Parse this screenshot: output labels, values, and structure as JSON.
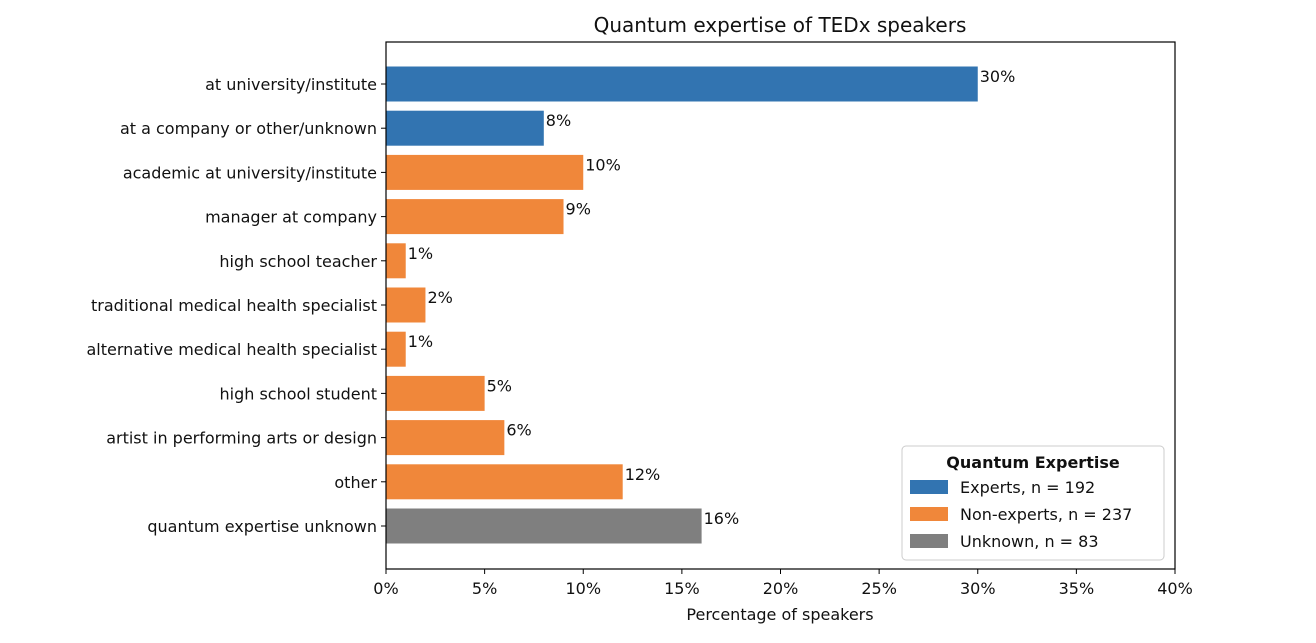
{
  "chart_data": {
    "type": "bar",
    "orientation": "horizontal",
    "title": "Quantum expertise of TEDx speakers",
    "xlabel": "Percentage of speakers",
    "ylabel": "",
    "xlim": [
      0,
      40
    ],
    "x_ticks": [
      0,
      5,
      10,
      15,
      20,
      25,
      30,
      35,
      40
    ],
    "x_tick_labels": [
      "0%",
      "5%",
      "10%",
      "15%",
      "20%",
      "25%",
      "30%",
      "35%",
      "40%"
    ],
    "grid": false,
    "legend_position": "bottom-right",
    "legend_title": "Quantum Expertise",
    "legend": [
      {
        "name": "Experts, n = 192",
        "group": "experts",
        "color": "#3274b1"
      },
      {
        "name": "Non-experts, n = 237",
        "group": "nonexperts",
        "color": "#f0873a"
      },
      {
        "name": "Unknown, n = 83",
        "group": "unknown",
        "color": "#7f7f7f"
      }
    ],
    "categories": [
      "at university/institute",
      "at a company or other/unknown",
      "academic at university/institute",
      "manager at company",
      "high school teacher",
      "traditional medical health specialist",
      "alternative medical health specialist",
      "high school student",
      "artist in performing arts or design",
      "other",
      "quantum expertise unknown"
    ],
    "values": [
      30,
      8,
      10,
      9,
      1,
      2,
      1,
      5,
      6,
      12,
      16
    ],
    "value_labels": [
      "30%",
      "8%",
      "10%",
      "9%",
      "1%",
      "2%",
      "1%",
      "5%",
      "6%",
      "12%",
      "16%"
    ],
    "groups": [
      "experts",
      "experts",
      "nonexperts",
      "nonexperts",
      "nonexperts",
      "nonexperts",
      "nonexperts",
      "nonexperts",
      "nonexperts",
      "nonexperts",
      "unknown"
    ]
  }
}
